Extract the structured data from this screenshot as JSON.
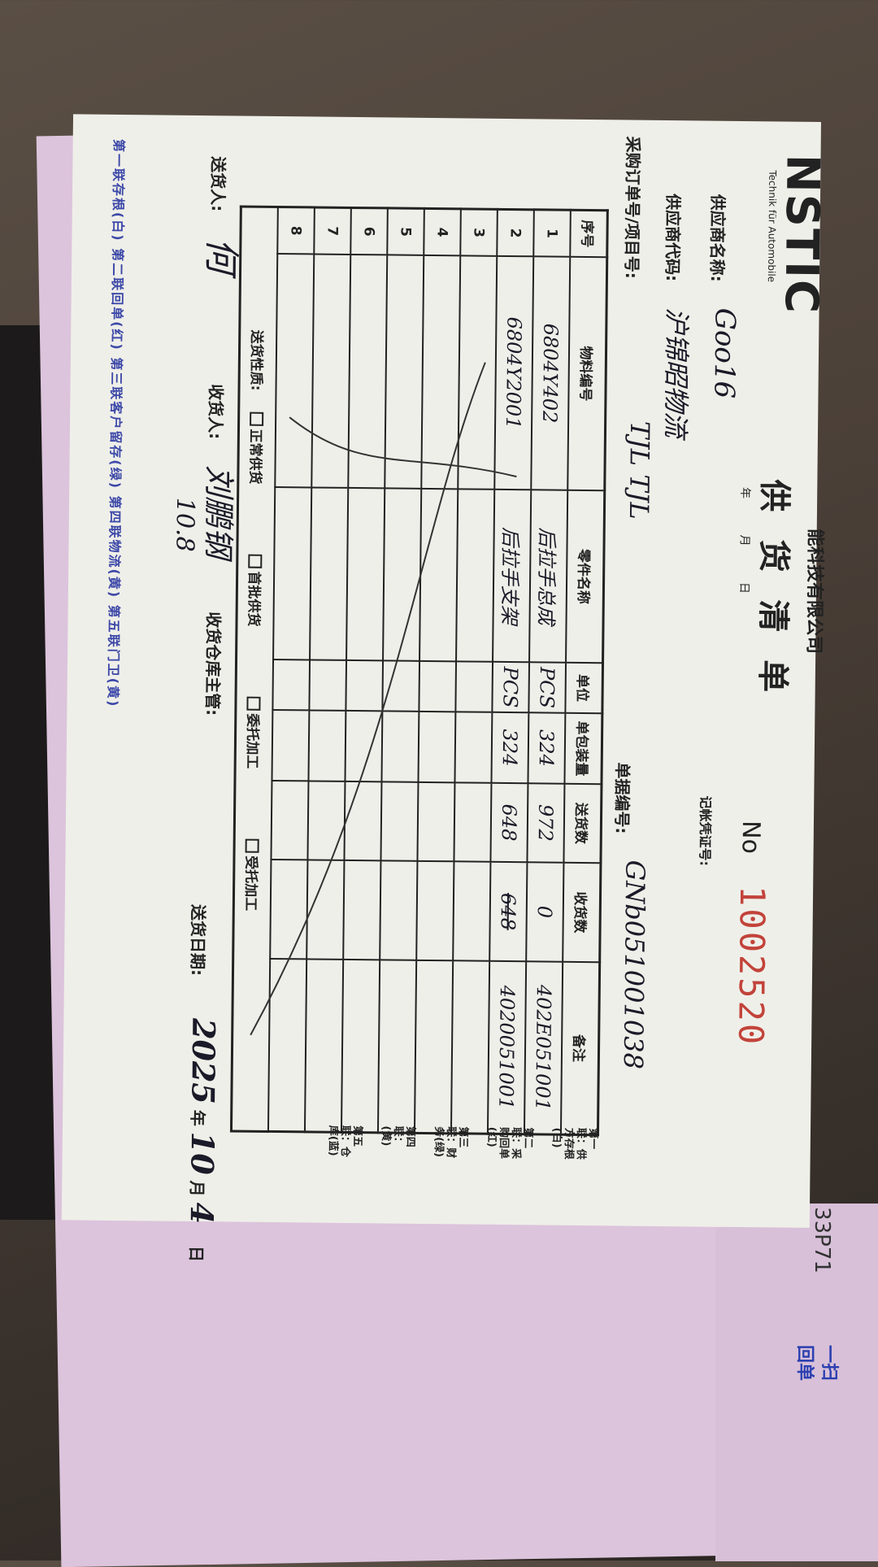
{
  "company_fragment": "能科技有限公司",
  "logo": {
    "text": "NSTIC",
    "sub": "Technik für Automobile"
  },
  "title": "供 货 清 单",
  "date_labels": {
    "year": "年",
    "month": "月",
    "day": "日"
  },
  "number_label": "No",
  "number": "1002520",
  "voucher_label": "记帐凭证号:",
  "supplier_name_label": "供应商名称:",
  "supplier_name": "Goo16",
  "supplier_code_label": "供应商代码:",
  "supplier_code": "沪锦昭物流",
  "po_label": "采购订单号/项目号:",
  "po_value": "TJL TJL",
  "doc_no_label": "单据编号:",
  "doc_no": "GNb051001038",
  "table": {
    "headers": [
      "序号",
      "物料编号",
      "零件名称",
      "单位",
      "单包装量",
      "送货数",
      "收货数",
      "备注"
    ],
    "rows": [
      {
        "no": "1",
        "part": "6804Y402",
        "name": "后拉手总成",
        "unit": "PCS",
        "pack": "324",
        "sent": "972",
        "received": "0",
        "note": "402E051001"
      },
      {
        "no": "2",
        "part": "6804Y2001",
        "name": "后拉手支架",
        "unit": "PCS",
        "pack": "324",
        "sent": "648",
        "received": "648",
        "note": "4020051001"
      },
      {
        "no": "3"
      },
      {
        "no": "4"
      },
      {
        "no": "5"
      },
      {
        "no": "6"
      },
      {
        "no": "7"
      },
      {
        "no": "8"
      }
    ],
    "delivery_type_label": "送货性质:",
    "delivery_types": [
      "正常供货",
      "首批供货",
      "委托加工",
      "受托加工"
    ]
  },
  "side_copies": [
    "第一联：供方存根(白)",
    "第二联：采购回单(红)",
    "第三联：财务(绿)",
    "第四联：(黄)",
    "第五联：仓库(蓝)"
  ],
  "footer": {
    "sender_label": "送货人:",
    "sender_sign": "何",
    "receiver_label": "收货人:",
    "receiver_sign": "刘鹏钢",
    "receiver_date": "10.8",
    "warehouse_label": "收货仓库主管:",
    "date_label": "送货日期:",
    "date_year": "2025",
    "date_y": "年",
    "date_month": "10",
    "date_m": "月",
    "date_day": "4",
    "date_d": "日"
  },
  "pink_strip": "第一联存根(白)   第二联回单(红)   第三联客户留存(绿)   第四联物流(黄)   第五联门卫(黄)",
  "right_fragments": {
    "code": "33P71",
    "scan": "一扫",
    "receipt": "回单"
  }
}
